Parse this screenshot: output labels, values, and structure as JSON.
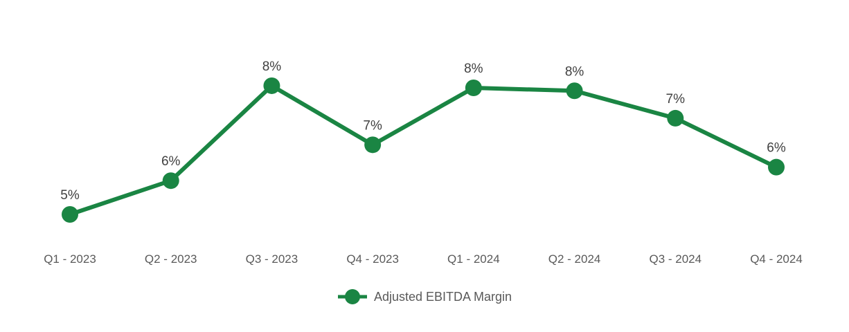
{
  "chart_data": {
    "type": "line",
    "title": "",
    "xlabel": "",
    "ylabel": "",
    "categories": [
      "Q1 - 2023",
      "Q2 - 2023",
      "Q3 - 2023",
      "Q4 - 2023",
      "Q1 - 2024",
      "Q2 - 2024",
      "Q3 - 2024",
      "Q4 - 2024"
    ],
    "series": [
      {
        "name": "Adjusted EBITDA Margin",
        "values": [
          5,
          6,
          8,
          7,
          8,
          8,
          7,
          6
        ],
        "point_labels": [
          "5%",
          "6%",
          "8%",
          "7%",
          "8%",
          "8%",
          "7%",
          "6%"
        ],
        "plot_values": [
          5.0,
          5.8,
          8.05,
          6.65,
          8.0,
          7.93,
          7.28,
          6.12
        ],
        "color": "#1A8543"
      }
    ],
    "grid": false,
    "axes_visible": false,
    "y_axis_visible": false,
    "legend_position": "bottom",
    "point_label_color": "#404040",
    "category_label_color": "#595959",
    "background_color": "#ffffff"
  }
}
